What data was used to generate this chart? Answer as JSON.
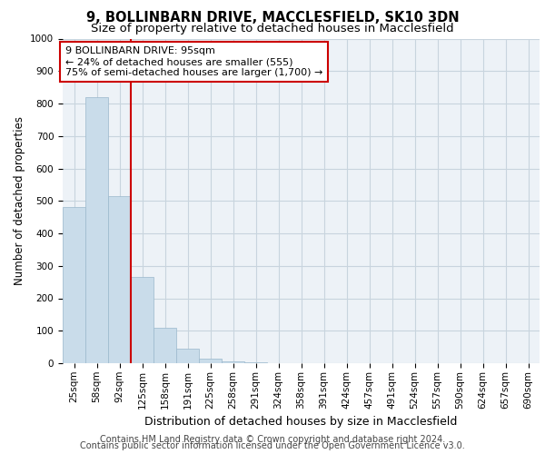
{
  "title1": "9, BOLLINBARN DRIVE, MACCLESFIELD, SK10 3DN",
  "title2": "Size of property relative to detached houses in Macclesfield",
  "xlabel": "Distribution of detached houses by size in Macclesfield",
  "ylabel": "Number of detached properties",
  "footnote1": "Contains HM Land Registry data © Crown copyright and database right 2024.",
  "footnote2": "Contains public sector information licensed under the Open Government Licence v3.0.",
  "annotation_line1": "9 BOLLINBARN DRIVE: 95sqm",
  "annotation_line2": "← 24% of detached houses are smaller (555)",
  "annotation_line3": "75% of semi-detached houses are larger (1,700) →",
  "bar_labels": [
    "25sqm",
    "58sqm",
    "92sqm",
    "125sqm",
    "158sqm",
    "191sqm",
    "225sqm",
    "258sqm",
    "291sqm",
    "324sqm",
    "358sqm",
    "391sqm",
    "424sqm",
    "457sqm",
    "491sqm",
    "524sqm",
    "557sqm",
    "590sqm",
    "624sqm",
    "657sqm",
    "690sqm"
  ],
  "bar_values": [
    480,
    820,
    515,
    265,
    110,
    45,
    15,
    5,
    2,
    1,
    0,
    0,
    0,
    0,
    0,
    0,
    0,
    0,
    0,
    0,
    0
  ],
  "bar_color": "#c9dcea",
  "bar_edge_color": "#9ab8cc",
  "property_line_color": "#cc0000",
  "property_line_idx": 2,
  "ylim": [
    0,
    1000
  ],
  "yticks": [
    0,
    100,
    200,
    300,
    400,
    500,
    600,
    700,
    800,
    900,
    1000
  ],
  "grid_color": "#c8d4de",
  "background_color": "#edf2f7",
  "annotation_border_color": "#cc0000",
  "title1_fontsize": 10.5,
  "title2_fontsize": 9.5,
  "xlabel_fontsize": 9,
  "ylabel_fontsize": 8.5,
  "tick_labelsize": 7.5,
  "annotation_fontsize": 8,
  "footnote_fontsize": 7
}
